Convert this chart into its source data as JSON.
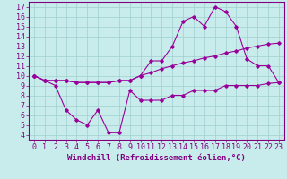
{
  "xlabel": "Windchill (Refroidissement éolien,°C)",
  "background_color": "#c8ecec",
  "line_color": "#990099",
  "xlim": [
    -0.5,
    23.5
  ],
  "ylim": [
    3.5,
    17.5
  ],
  "xticks": [
    0,
    1,
    2,
    3,
    4,
    5,
    6,
    7,
    8,
    9,
    10,
    11,
    12,
    13,
    14,
    15,
    16,
    17,
    18,
    19,
    20,
    21,
    22,
    23
  ],
  "yticks": [
    4,
    5,
    6,
    7,
    8,
    9,
    10,
    11,
    12,
    13,
    14,
    15,
    16,
    17
  ],
  "line2_x": [
    0,
    1,
    2,
    3,
    4,
    5,
    6,
    7,
    8,
    9,
    10,
    11,
    12,
    13,
    14,
    15,
    16,
    17,
    18,
    19,
    20,
    21,
    22,
    23
  ],
  "line2_y": [
    10.0,
    9.5,
    9.5,
    9.5,
    9.3,
    9.3,
    9.3,
    9.3,
    9.5,
    9.5,
    10.0,
    11.5,
    11.5,
    13.0,
    15.5,
    16.0,
    15.0,
    17.0,
    16.5,
    15.0,
    11.7,
    11.0,
    11.0,
    9.3
  ],
  "line1_x": [
    0,
    1,
    2,
    3,
    4,
    5,
    6,
    7,
    8,
    9,
    10,
    11,
    12,
    13,
    14,
    15,
    16,
    17,
    18,
    19,
    20,
    21,
    22,
    23
  ],
  "line1_y": [
    10.0,
    9.5,
    9.5,
    9.5,
    9.3,
    9.3,
    9.3,
    9.3,
    9.5,
    9.5,
    10.0,
    10.3,
    10.7,
    11.0,
    11.3,
    11.5,
    11.8,
    12.0,
    12.3,
    12.5,
    12.8,
    13.0,
    13.2,
    13.3
  ],
  "line3_x": [
    0,
    1,
    2,
    3,
    4,
    5,
    6,
    7,
    8,
    9,
    10,
    11,
    12,
    13,
    14,
    15,
    16,
    17,
    18,
    19,
    20,
    21,
    22,
    23
  ],
  "line3_y": [
    10.0,
    9.5,
    9.0,
    6.5,
    5.5,
    5.0,
    6.5,
    4.2,
    4.2,
    8.5,
    7.5,
    7.5,
    7.5,
    8.0,
    8.0,
    8.5,
    8.5,
    8.5,
    9.0,
    9.0,
    9.0,
    9.0,
    9.2,
    9.3
  ],
  "xlabel_fontsize": 6.5,
  "tick_fontsize": 6.0
}
